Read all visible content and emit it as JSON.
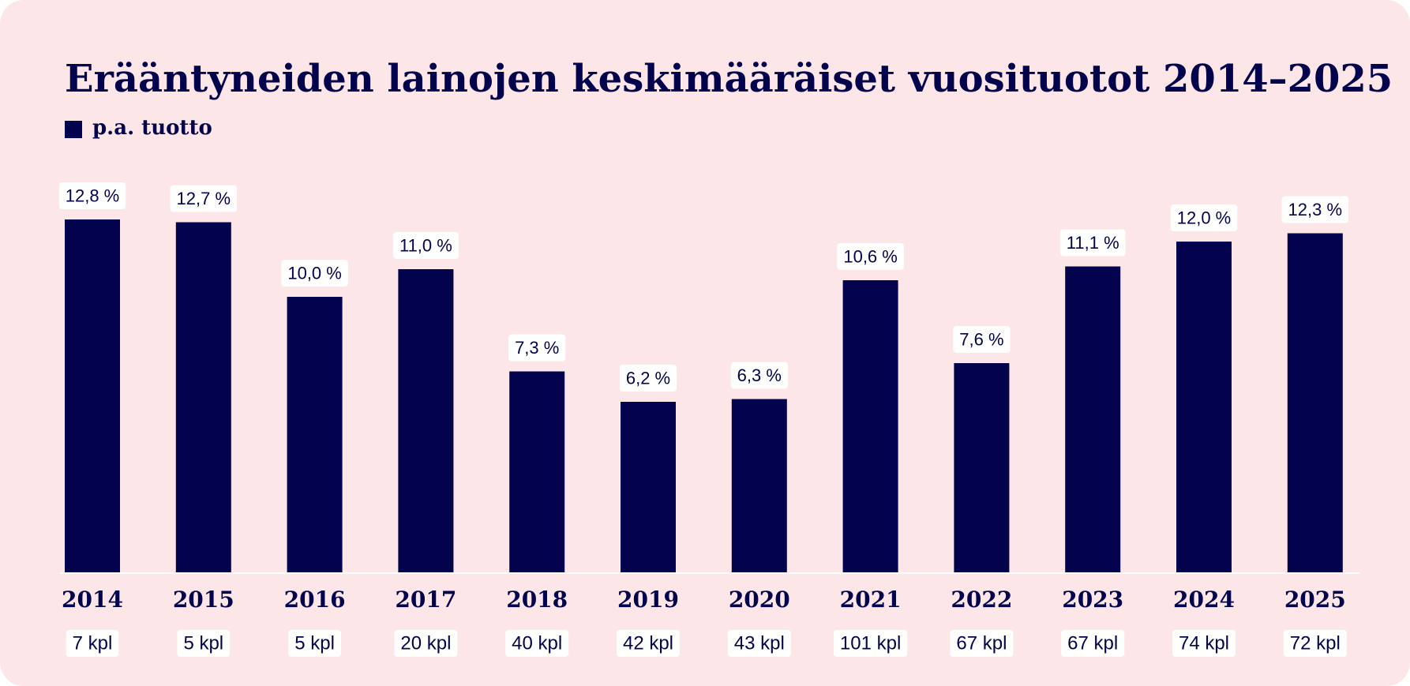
{
  "chart_data": {
    "type": "bar",
    "title": "Erääntyneiden lainojen keskimääräiset vuosituotot 2014–2025",
    "legend": [
      {
        "name": "p.a. tuotto",
        "color": "#03034d"
      }
    ],
    "categories": [
      "2014",
      "2015",
      "2016",
      "2017",
      "2018",
      "2019",
      "2020",
      "2021",
      "2022",
      "2023",
      "2024",
      "2025"
    ],
    "series": [
      {
        "name": "p.a. tuotto",
        "values": [
          12.8,
          12.7,
          10.0,
          11.0,
          7.3,
          6.2,
          6.3,
          10.6,
          7.6,
          11.1,
          12.0,
          12.3
        ],
        "value_labels": [
          "12,8 %",
          "12,7 %",
          "10,0 %",
          "11,0 %",
          "7,3 %",
          "6,2 %",
          "6,3 %",
          "10,6 %",
          "7,6 %",
          "11,1 %",
          "12,0 %",
          "12,3 %"
        ]
      }
    ],
    "counts": [
      "7 kpl",
      "5 kpl",
      "5 kpl",
      "20 kpl",
      "40 kpl",
      "42 kpl",
      "43 kpl",
      "101 kpl",
      "67 kpl",
      "67 kpl",
      "74 kpl",
      "72 kpl"
    ],
    "xlabel": "",
    "ylabel": "",
    "ylim": [
      0,
      14
    ],
    "grid": false,
    "legend_position": "top-left"
  },
  "colors": {
    "background": "#fce6e8",
    "bar": "#03034d",
    "text": "#03034d",
    "label_bg": "#ffffff",
    "baseline": "#ffffff"
  }
}
